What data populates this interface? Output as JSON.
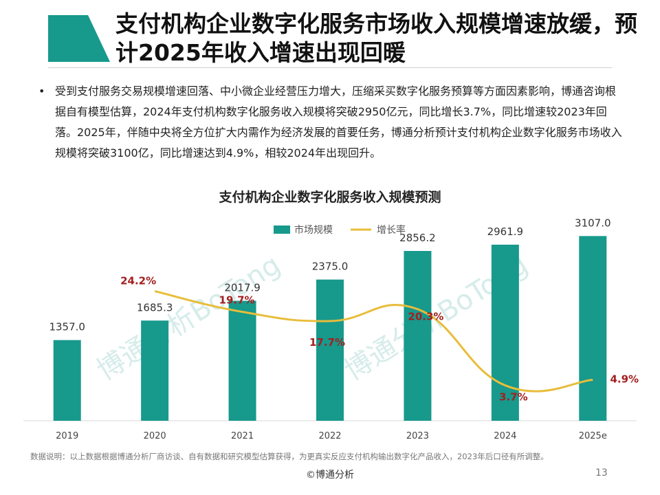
{
  "header": {
    "title": "支付机构企业数字化服务市场收入规模增速放缓，预计2025年收入增速出现回暖",
    "accent_color": "#17998c"
  },
  "body": {
    "bullet": "•",
    "paragraph": "受到支付服务交易规模增速回落、中小微企业经营压力增大，压缩采买数字化服务预算等方面因素影响，博通咨询根据自有模型估算，2024年支付机构数字化服务收入规模将突破2950亿元，同比增长3.7%，同比增速较2023年回落。2025年，伴随中央将全方位扩大内需作为经济发展的首要任务，博通分析预计支付机构企业数字化服务市场收入规模将突破3100亿，同比增速达到4.9%，相较2024年出现回升。"
  },
  "watermark": "博通分析BoTong",
  "chart_data": {
    "type": "bar",
    "title": "支付机构企业数字化服务收入规模预测",
    "categories": [
      "2019",
      "2020",
      "2021",
      "2022",
      "2023",
      "2024",
      "2025e"
    ],
    "series": [
      {
        "name": "市场规模",
        "kind": "bar",
        "color": "#17998c",
        "values": [
          1357.0,
          1685.3,
          2017.9,
          2375.0,
          2856.2,
          2961.9,
          3107.0
        ],
        "labels": [
          "1357.0",
          "1685.3",
          "2017.9",
          "2375.0",
          "2856.2",
          "2961.9",
          "3107.0"
        ]
      },
      {
        "name": "增长率",
        "kind": "line",
        "color": "#e8bd3a",
        "values": [
          null,
          24.2,
          19.7,
          17.7,
          20.3,
          3.7,
          4.9
        ],
        "labels": [
          "",
          "24.2%",
          "19.7%",
          "17.7%",
          "20.3%",
          "3.7%",
          "4.9%"
        ]
      }
    ],
    "ylim": [
      0,
      3400
    ],
    "y2lim": [
      -4,
      40
    ],
    "legend": "top-center",
    "grid": false,
    "label_color": "#a31f1f"
  },
  "footer": {
    "note": "数据说明：以上数据根据博通分析厂商访谈、自有数据和研究模型估算获得，为更真实反应支付机构输出数字化产品收入，2023年后口径有所调整。",
    "copyright": "©博通分析",
    "page_number": "13"
  }
}
